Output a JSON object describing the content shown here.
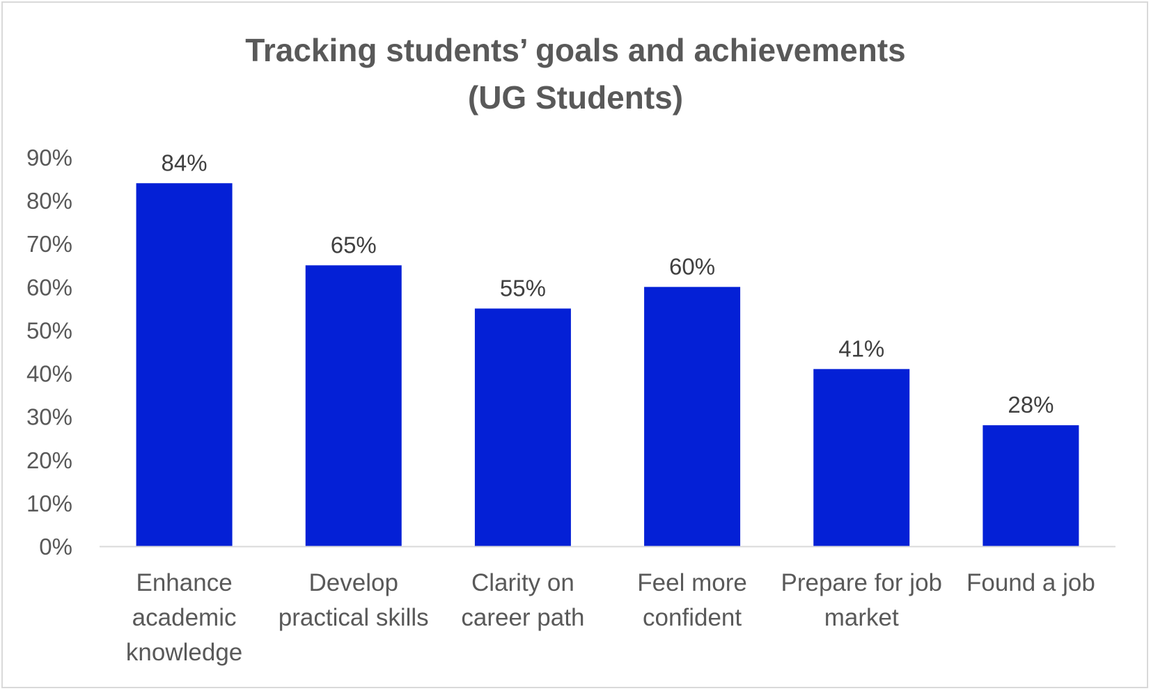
{
  "chart_data": {
    "type": "bar",
    "title": "Tracking students’ goals and achievements",
    "subtitle": "(UG Students)",
    "categories": [
      "Enhance academic knowledge",
      "Develop practical skills",
      "Clarity on career path",
      "Feel more confident",
      "Prepare for job market",
      "Found a job"
    ],
    "category_lines": [
      [
        "Enhance",
        "academic",
        "knowledge"
      ],
      [
        "Develop",
        "practical skills"
      ],
      [
        "Clarity on",
        "career path"
      ],
      [
        "Feel more",
        "confident"
      ],
      [
        "Prepare for job",
        "market"
      ],
      [
        "Found a job"
      ]
    ],
    "values": [
      84,
      65,
      55,
      60,
      41,
      28
    ],
    "data_labels": [
      "84%",
      "65%",
      "55%",
      "60%",
      "41%",
      "28%"
    ],
    "y_ticks": [
      "0%",
      "10%",
      "20%",
      "30%",
      "40%",
      "50%",
      "60%",
      "70%",
      "80%",
      "90%"
    ],
    "ylim": [
      0,
      90
    ],
    "grid": false,
    "legend": "none",
    "bar_color": "#0420D6",
    "axis_color": "#D9D9D9"
  }
}
